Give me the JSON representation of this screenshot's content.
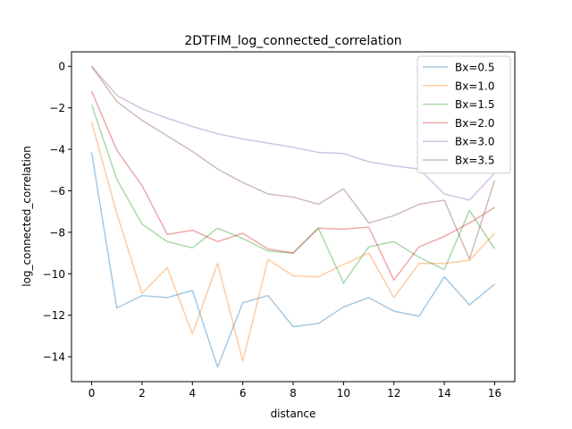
{
  "chart_data": {
    "type": "line",
    "title": "2DTFIM_log_connected_correlation",
    "xlabel": "distance",
    "ylabel": "log_connected_correlation",
    "xlim": [
      -0.8,
      16.8
    ],
    "ylim": [
      -15.2,
      0.7
    ],
    "xticks": [
      0,
      2,
      4,
      6,
      8,
      10,
      12,
      14,
      16
    ],
    "yticks": [
      0,
      -2,
      -4,
      -6,
      -8,
      -10,
      -12,
      -14
    ],
    "grid": false,
    "legend_position": "top-right",
    "x": [
      0,
      1,
      2,
      3,
      4,
      5,
      6,
      7,
      8,
      9,
      10,
      11,
      12,
      13,
      14,
      15,
      16
    ],
    "series": [
      {
        "name": "Bx=0.5",
        "color": "#1f77b4",
        "values": [
          -4.15,
          -11.65,
          -11.05,
          -11.15,
          -10.8,
          -14.5,
          -11.4,
          -11.05,
          -12.55,
          -12.4,
          -11.6,
          -11.15,
          -11.8,
          -12.05,
          -10.15,
          -11.5,
          -10.5
        ]
      },
      {
        "name": "Bx=1.0",
        "color": "#ff7f0e",
        "values": [
          -2.7,
          -7.1,
          -10.95,
          -9.7,
          -12.9,
          -9.5,
          -14.2,
          -9.3,
          -10.1,
          -10.15,
          -9.55,
          -9.0,
          -11.15,
          -9.5,
          -9.5,
          -9.35,
          -8.05
        ]
      },
      {
        "name": "Bx=1.5",
        "color": "#2ca02c",
        "values": [
          -1.85,
          -5.45,
          -7.6,
          -8.45,
          -8.75,
          -7.8,
          -8.3,
          -8.9,
          -9.0,
          -7.8,
          -10.45,
          -8.7,
          -8.45,
          -9.2,
          -9.8,
          -6.95,
          -8.8
        ]
      },
      {
        "name": "Bx=2.0",
        "color": "#d62728",
        "values": [
          -1.2,
          -4.05,
          -5.75,
          -8.1,
          -7.9,
          -8.45,
          -8.05,
          -8.8,
          -9.0,
          -7.8,
          -7.85,
          -7.75,
          -10.3,
          -8.7,
          -8.2,
          -7.55,
          -6.8
        ]
      },
      {
        "name": "Bx=3.0",
        "color": "#9467bd",
        "values": [
          0.0,
          -1.4,
          -2.05,
          -2.5,
          -2.9,
          -3.25,
          -3.5,
          -3.7,
          -3.9,
          -4.15,
          -4.2,
          -4.6,
          -4.8,
          -4.95,
          -6.15,
          -6.45,
          -5.15
        ]
      },
      {
        "name": "Bx=3.5",
        "color": "#8c564b",
        "values": [
          0.0,
          -1.7,
          -2.6,
          -3.35,
          -4.1,
          -4.95,
          -5.6,
          -6.15,
          -6.3,
          -6.65,
          -5.9,
          -7.55,
          -7.2,
          -6.65,
          -6.45,
          -9.3,
          -5.5
        ]
      }
    ]
  }
}
